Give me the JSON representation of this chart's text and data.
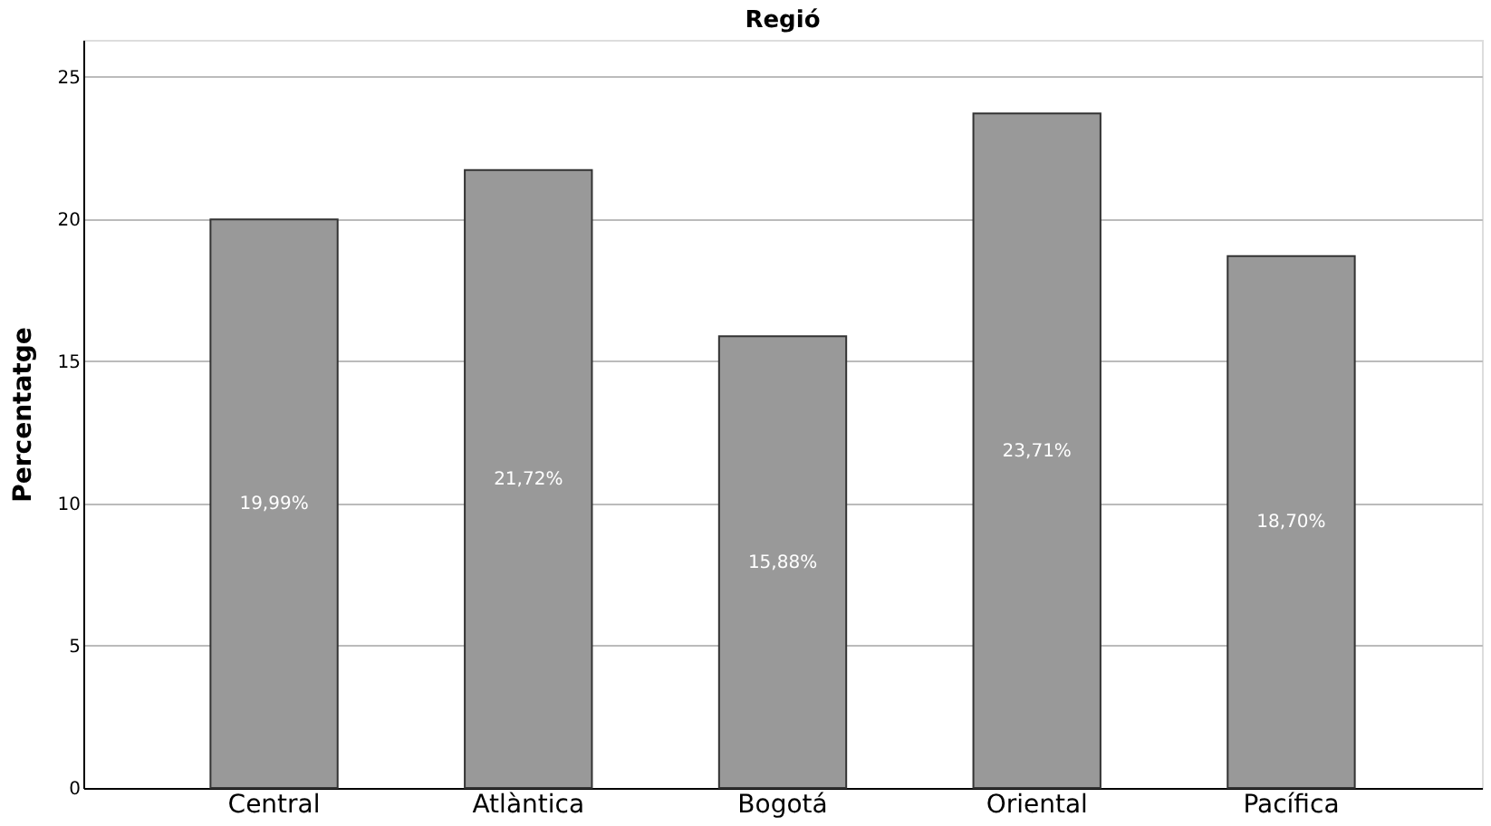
{
  "chart_data": {
    "type": "bar",
    "title": "Regió",
    "ylabel": "Percentatge",
    "categories": [
      "Central",
      "Atlàntica",
      "Bogotá",
      "Oriental",
      "Pacífica"
    ],
    "values": [
      19.99,
      21.72,
      15.88,
      23.71,
      18.7
    ],
    "value_labels": [
      "19,99%",
      "21,72%",
      "15,88%",
      "23,71%",
      "18,70%"
    ],
    "color": "#999999",
    "ylim": [
      0,
      26.3
    ],
    "yticks": [
      0,
      5,
      10,
      15,
      20,
      25
    ],
    "grid": "y"
  }
}
